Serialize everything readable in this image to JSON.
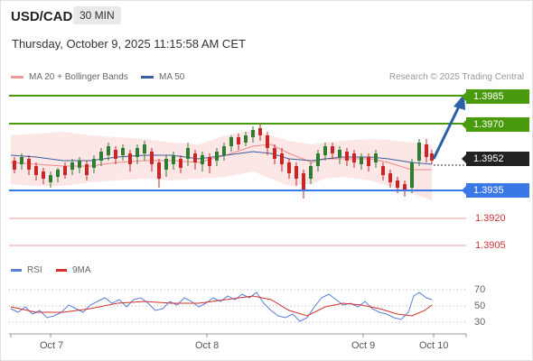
{
  "header": {
    "pair": "USD/CAD",
    "timeframe": "30 MIN",
    "timestamp": "Thursday, October 9, 2025 11:15:58 AM CET"
  },
  "legend": {
    "item1": "MA 20 + Bollinger Bands",
    "item2": "MA 50",
    "credit": "Research © 2025 Trading Central"
  },
  "levels": {
    "l1": "1.3985",
    "l2": "1.3970",
    "current": "1.3952",
    "l3": "1.3935",
    "l4": "1.3920",
    "l5": "1.3905"
  },
  "rsi": {
    "label": "RSI",
    "ma_label": "9MA",
    "t70": "70",
    "t50": "50",
    "t30": "30"
  },
  "dates": {
    "d1": "Oct 7",
    "d2": "Oct 8",
    "d3": "Oct 9",
    "d4": "Oct 10"
  },
  "colors": {
    "resistance": "#4a9a0e",
    "current": "#222222",
    "support": "#3b78e7",
    "pivot": "#cc3333",
    "arrow": "#2b5fa8",
    "bull": "#2e7d32",
    "bear": "#c62828"
  }
}
